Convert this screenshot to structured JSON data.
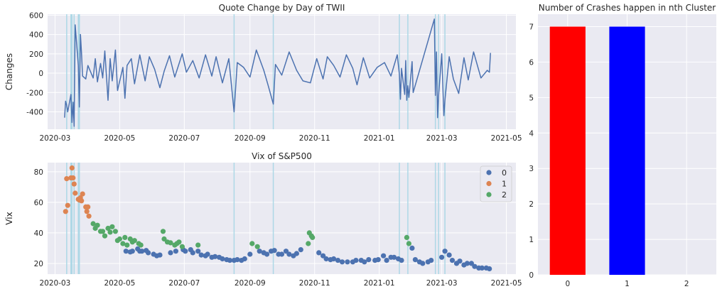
{
  "colors": {
    "panel_bg": "#eaeaf2",
    "grid": "#ffffff",
    "line": "#4c72b0",
    "crash_line": "#add8e6",
    "cluster0": "#4c72b0",
    "cluster1": "#dd8452",
    "cluster2": "#55a868",
    "bar0": "#ff0000",
    "bar1": "#0000ff"
  },
  "chart_data": [
    {
      "id": "quote-change",
      "type": "line",
      "title": "Quote Change by Day of TWII",
      "xlabel": "",
      "ylabel": "Changes",
      "xlim": [
        "2020-02-23",
        "2021-05-10"
      ],
      "ylim": [
        -580,
        610
      ],
      "xticks": [
        "2020-03",
        "2020-05",
        "2020-07",
        "2020-09",
        "2020-11",
        "2021-01",
        "2021-03",
        "2021-05"
      ],
      "yticks": [
        -400,
        -200,
        0,
        200,
        400,
        600
      ],
      "crash_dates": [
        "2020-03-12",
        "2020-03-16",
        "2020-03-17",
        "2020-03-19",
        "2020-03-23",
        "2020-03-24",
        "2020-08-17",
        "2020-09-23",
        "2021-01-20",
        "2021-01-28",
        "2021-02-23",
        "2021-02-26",
        "2021-03-04"
      ],
      "series": [
        {
          "x": [
            "2020-03-10",
            "2020-03-11",
            "2020-03-12",
            "2020-03-13",
            "2020-03-16",
            "2020-03-17",
            "2020-03-18",
            "2020-03-19",
            "2020-03-20",
            "2020-03-23",
            "2020-03-24",
            "2020-03-25",
            "2020-03-26",
            "2020-03-27",
            "2020-03-30",
            "2020-04-01",
            "2020-04-06",
            "2020-04-08",
            "2020-04-10",
            "2020-04-13",
            "2020-04-15",
            "2020-04-17",
            "2020-04-20",
            "2020-04-22",
            "2020-04-24",
            "2020-04-27",
            "2020-04-29",
            "2020-05-04",
            "2020-05-06",
            "2020-05-08",
            "2020-05-12",
            "2020-05-15",
            "2020-05-20",
            "2020-05-25",
            "2020-05-29",
            "2020-06-03",
            "2020-06-08",
            "2020-06-12",
            "2020-06-17",
            "2020-06-22",
            "2020-06-29",
            "2020-07-03",
            "2020-07-09",
            "2020-07-15",
            "2020-07-21",
            "2020-07-27",
            "2020-07-31",
            "2020-08-06",
            "2020-08-12",
            "2020-08-17",
            "2020-08-20",
            "2020-08-26",
            "2020-09-01",
            "2020-09-07",
            "2020-09-14",
            "2020-09-18",
            "2020-09-23",
            "2020-09-25",
            "2020-10-01",
            "2020-10-08",
            "2020-10-15",
            "2020-10-21",
            "2020-10-28",
            "2020-11-03",
            "2020-11-09",
            "2020-11-13",
            "2020-11-19",
            "2020-11-25",
            "2020-12-01",
            "2020-12-07",
            "2020-12-11",
            "2020-12-17",
            "2020-12-23",
            "2020-12-30",
            "2021-01-06",
            "2021-01-12",
            "2021-01-18",
            "2021-01-20",
            "2021-01-21",
            "2021-01-22",
            "2021-01-25",
            "2021-01-26",
            "2021-01-27",
            "2021-01-28",
            "2021-01-29",
            "2021-02-01",
            "2021-02-02",
            "2021-02-22",
            "2021-02-23",
            "2021-02-24",
            "2021-02-25",
            "2021-02-26",
            "2021-03-01",
            "2021-03-02",
            "2021-03-03",
            "2021-03-04",
            "2021-03-08",
            "2021-03-12",
            "2021-03-17",
            "2021-03-22",
            "2021-03-26",
            "2021-03-31",
            "2021-04-07",
            "2021-04-13",
            "2021-04-15",
            "2021-04-16"
          ],
          "values": [
            -460,
            -290,
            -330,
            -400,
            -220,
            -510,
            -300,
            -550,
            500,
            80,
            -350,
            400,
            210,
            -30,
            -60,
            80,
            -50,
            150,
            -90,
            100,
            -50,
            230,
            -280,
            150,
            -80,
            240,
            -180,
            60,
            -260,
            80,
            150,
            -110,
            190,
            -80,
            170,
            40,
            -150,
            20,
            180,
            -40,
            200,
            10,
            130,
            -50,
            190,
            -30,
            170,
            -100,
            150,
            -400,
            110,
            60,
            -40,
            240,
            30,
            -120,
            -320,
            90,
            -20,
            220,
            30,
            -80,
            -100,
            150,
            -60,
            170,
            80,
            -40,
            190,
            50,
            -120,
            160,
            -50,
            60,
            110,
            -30,
            190,
            -10,
            -270,
            50,
            -220,
            130,
            -280,
            -130,
            -250,
            120,
            -200,
            560,
            -230,
            220,
            -460,
            -230,
            200,
            -120,
            -440,
            -280,
            170,
            -60,
            -210,
            160,
            -70,
            220,
            -50,
            30,
            10,
            210
          ]
        }
      ]
    },
    {
      "id": "vix",
      "type": "scatter",
      "title": "Vix of S&P500",
      "xlabel": "",
      "ylabel": "Vix",
      "xlim": [
        "2020-02-23",
        "2021-05-10"
      ],
      "ylim": [
        13,
        86
      ],
      "xticks": [
        "2020-03",
        "2020-05",
        "2020-07",
        "2020-09",
        "2020-11",
        "2021-01",
        "2021-03",
        "2021-05"
      ],
      "yticks": [
        20,
        40,
        60,
        80
      ],
      "crash_dates": [
        "2020-03-12",
        "2020-03-16",
        "2020-03-17",
        "2020-03-19",
        "2020-03-23",
        "2020-03-24",
        "2020-08-17",
        "2020-09-23",
        "2021-01-20",
        "2021-01-28",
        "2021-02-23",
        "2021-02-26",
        "2021-03-04"
      ],
      "legend": {
        "position": "top-right",
        "entries": [
          "0",
          "1",
          "2"
        ]
      },
      "series": [
        {
          "name": "0",
          "points": [
            [
              "2020-05-07",
              28
            ],
            [
              "2020-05-11",
              27.5
            ],
            [
              "2020-05-13",
              28
            ],
            [
              "2020-05-18",
              29.5
            ],
            [
              "2020-05-20",
              28
            ],
            [
              "2020-05-22",
              28
            ],
            [
              "2020-05-26",
              28.5
            ],
            [
              "2020-05-28",
              27
            ],
            [
              "2020-06-02",
              26
            ],
            [
              "2020-06-05",
              25
            ],
            [
              "2020-06-08",
              25.5
            ],
            [
              "2020-06-18",
              27
            ],
            [
              "2020-06-23",
              28
            ],
            [
              "2020-06-30",
              29
            ],
            [
              "2020-07-02",
              28
            ],
            [
              "2020-07-07",
              29
            ],
            [
              "2020-07-09",
              27
            ],
            [
              "2020-07-14",
              28
            ],
            [
              "2020-07-17",
              25.5
            ],
            [
              "2020-07-21",
              25
            ],
            [
              "2020-07-23",
              26
            ],
            [
              "2020-07-27",
              24
            ],
            [
              "2020-07-30",
              24.5
            ],
            [
              "2020-08-03",
              24
            ],
            [
              "2020-08-06",
              23
            ],
            [
              "2020-08-10",
              22.5
            ],
            [
              "2020-08-13",
              22
            ],
            [
              "2020-08-17",
              22
            ],
            [
              "2020-08-20",
              22.5
            ],
            [
              "2020-08-24",
              22
            ],
            [
              "2020-08-27",
              23
            ],
            [
              "2020-09-01",
              26
            ],
            [
              "2020-09-10",
              28
            ],
            [
              "2020-09-14",
              27
            ],
            [
              "2020-09-17",
              26
            ],
            [
              "2020-09-21",
              28
            ],
            [
              "2020-09-24",
              28.5
            ],
            [
              "2020-09-28",
              26
            ],
            [
              "2020-10-01",
              26
            ],
            [
              "2020-10-05",
              28
            ],
            [
              "2020-10-08",
              26
            ],
            [
              "2020-10-12",
              25
            ],
            [
              "2020-10-15",
              26.5
            ],
            [
              "2020-10-19",
              29
            ],
            [
              "2020-11-05",
              27
            ],
            [
              "2020-11-09",
              25
            ],
            [
              "2020-11-12",
              23
            ],
            [
              "2020-11-16",
              22.5
            ],
            [
              "2020-11-19",
              23
            ],
            [
              "2020-11-23",
              22
            ],
            [
              "2020-11-27",
              21
            ],
            [
              "2020-12-02",
              21
            ],
            [
              "2020-12-07",
              21
            ],
            [
              "2020-12-10",
              22
            ],
            [
              "2020-12-15",
              22
            ],
            [
              "2020-12-18",
              21
            ],
            [
              "2020-12-22",
              22.5
            ],
            [
              "2020-12-28",
              22
            ],
            [
              "2020-12-31",
              22.5
            ],
            [
              "2021-01-05",
              25
            ],
            [
              "2021-01-08",
              22
            ],
            [
              "2021-01-12",
              24
            ],
            [
              "2021-01-15",
              24
            ],
            [
              "2021-01-19",
              23
            ],
            [
              "2021-01-22",
              22
            ],
            [
              "2021-02-01",
              30
            ],
            [
              "2021-02-04",
              22.5
            ],
            [
              "2021-02-08",
              21
            ],
            [
              "2021-02-11",
              20
            ],
            [
              "2021-02-16",
              21
            ],
            [
              "2021-02-19",
              22
            ],
            [
              "2021-03-01",
              24
            ],
            [
              "2021-03-04",
              28
            ],
            [
              "2021-03-08",
              25.5
            ],
            [
              "2021-03-11",
              22
            ],
            [
              "2021-03-15",
              20
            ],
            [
              "2021-03-18",
              21.5
            ],
            [
              "2021-03-22",
              19
            ],
            [
              "2021-03-25",
              20
            ],
            [
              "2021-03-29",
              20
            ],
            [
              "2021-04-01",
              18
            ],
            [
              "2021-04-05",
              17
            ],
            [
              "2021-04-08",
              17
            ],
            [
              "2021-04-12",
              17
            ],
            [
              "2021-04-15",
              16.5
            ]
          ]
        },
        {
          "name": "1",
          "points": [
            [
              "2020-03-11",
              54
            ],
            [
              "2020-03-12",
              75.5
            ],
            [
              "2020-03-13",
              58
            ],
            [
              "2020-03-16",
              76
            ],
            [
              "2020-03-17",
              82.5
            ],
            [
              "2020-03-18",
              76
            ],
            [
              "2020-03-19",
              72
            ],
            [
              "2020-03-20",
              66
            ],
            [
              "2020-03-23",
              62
            ],
            [
              "2020-03-24",
              61.5
            ],
            [
              "2020-03-25",
              63
            ],
            [
              "2020-03-26",
              61
            ],
            [
              "2020-03-27",
              65.5
            ],
            [
              "2020-03-30",
              57
            ],
            [
              "2020-03-31",
              54
            ],
            [
              "2020-04-01",
              57
            ],
            [
              "2020-04-02",
              51
            ]
          ]
        },
        {
          "name": "2",
          "points": [
            [
              "2020-04-06",
              46
            ],
            [
              "2020-04-08",
              43
            ],
            [
              "2020-04-10",
              45
            ],
            [
              "2020-04-13",
              41
            ],
            [
              "2020-04-15",
              41
            ],
            [
              "2020-04-17",
              38
            ],
            [
              "2020-04-20",
              43
            ],
            [
              "2020-04-22",
              40.5
            ],
            [
              "2020-04-24",
              44
            ],
            [
              "2020-04-27",
              41
            ],
            [
              "2020-04-29",
              35
            ],
            [
              "2020-05-01",
              36
            ],
            [
              "2020-05-04",
              33
            ],
            [
              "2020-05-06",
              37
            ],
            [
              "2020-05-08",
              32
            ],
            [
              "2020-05-11",
              36
            ],
            [
              "2020-05-13",
              34
            ],
            [
              "2020-05-15",
              35
            ],
            [
              "2020-05-19",
              33
            ],
            [
              "2020-05-21",
              32
            ],
            [
              "2020-06-11",
              41
            ],
            [
              "2020-06-12",
              36
            ],
            [
              "2020-06-15",
              34
            ],
            [
              "2020-06-18",
              33.5
            ],
            [
              "2020-06-22",
              32
            ],
            [
              "2020-06-24",
              33
            ],
            [
              "2020-06-26",
              34
            ],
            [
              "2020-06-29",
              31
            ],
            [
              "2020-07-14",
              32
            ],
            [
              "2020-09-03",
              33
            ],
            [
              "2020-09-08",
              31
            ],
            [
              "2020-10-26",
              33
            ],
            [
              "2020-10-27",
              40
            ],
            [
              "2020-10-29",
              38
            ],
            [
              "2020-10-30",
              37
            ],
            [
              "2021-01-27",
              37
            ],
            [
              "2021-01-29",
              33
            ]
          ]
        }
      ]
    },
    {
      "id": "crash-count",
      "type": "bar",
      "title": "Number of Crashes happen in nth Cluster",
      "xlabel": "",
      "ylabel": "",
      "categories": [
        "0",
        "1",
        "2"
      ],
      "values": [
        7,
        7,
        0
      ],
      "ylim": [
        0,
        7.35
      ],
      "yticks": [
        0,
        1,
        2,
        3,
        4,
        5,
        6,
        7
      ]
    }
  ]
}
